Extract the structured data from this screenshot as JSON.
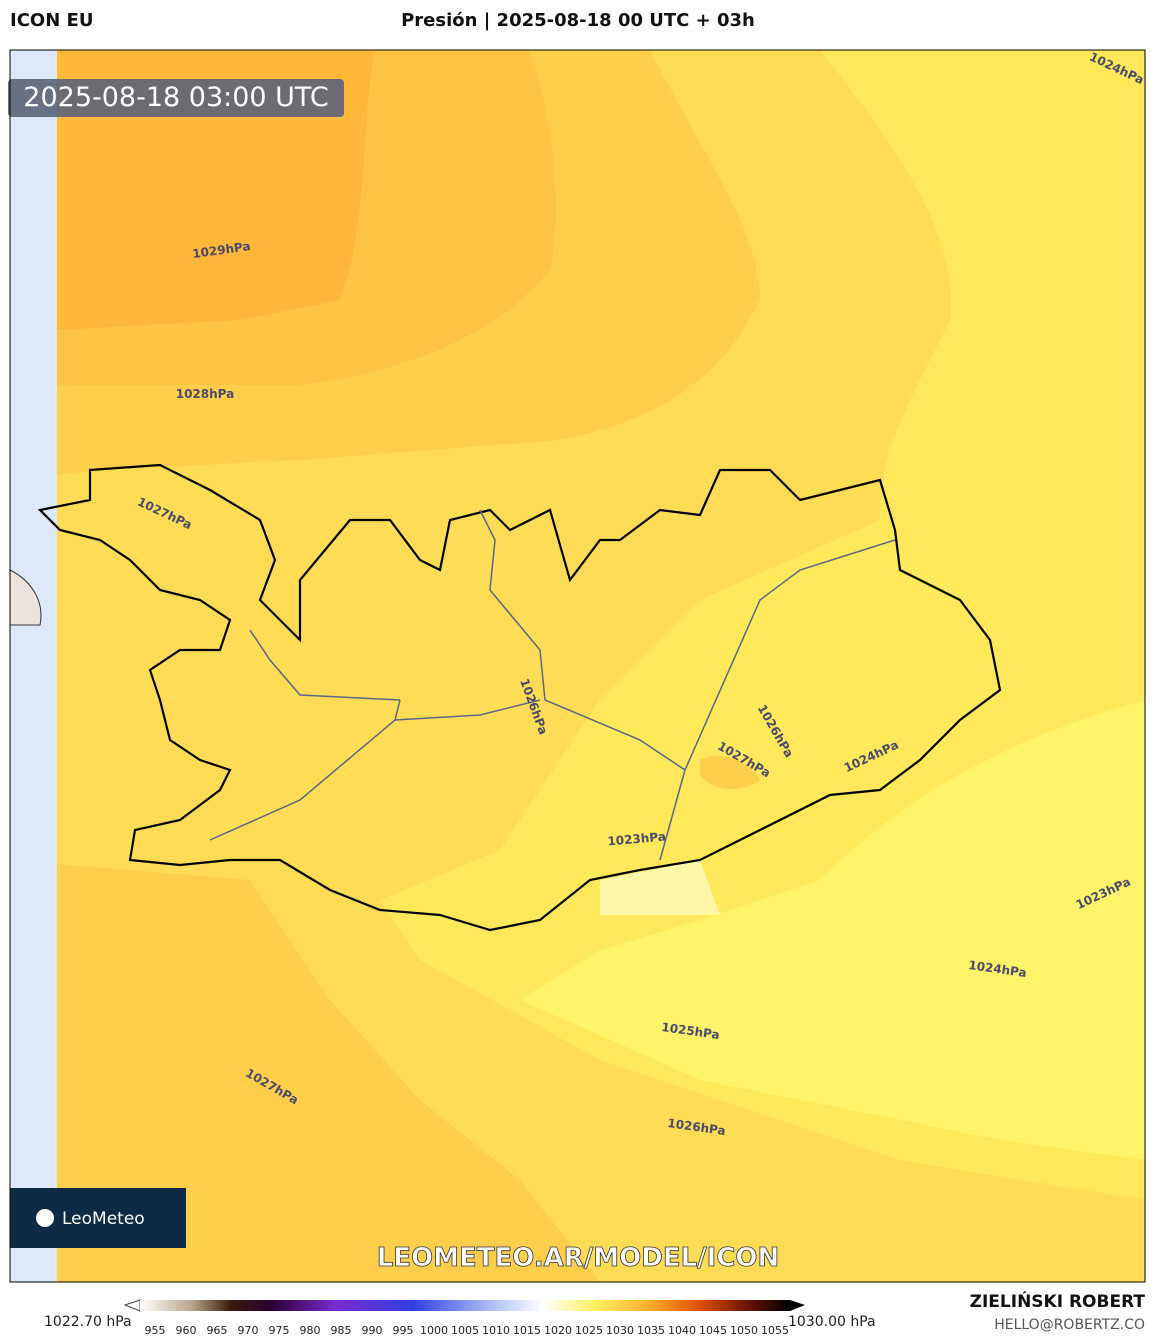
{
  "header": {
    "model": "ICON EU",
    "title": "Presión | 2025-08-18 00 UTC + 03h",
    "valid_time": "2025-08-18 03:00 UTC"
  },
  "map": {
    "contour_labels": [
      "1024hPa",
      "1029hPa",
      "1028hPa",
      "1027hPa",
      "1026hPa",
      "1026hPa",
      "1027hPa",
      "1024hPa",
      "1023hPa",
      "1023hPa",
      "1024hPa",
      "1025hPa",
      "1027hPa",
      "1026hPa"
    ],
    "logo": "LeoMeteo",
    "url": "LEOMETEO.AR/MODEL/ICON"
  },
  "colorbar": {
    "min_label": "1022.70 hPa",
    "max_label": "1030.00 hPa",
    "ticks": [
      "955",
      "960",
      "965",
      "970",
      "975",
      "980",
      "985",
      "990",
      "995",
      "1000",
      "1005",
      "1010",
      "1015",
      "1020",
      "1025",
      "1030",
      "1035",
      "1040",
      "1045",
      "1050",
      "1055"
    ]
  },
  "footer": {
    "author": "ZIELIŃSKI ROBERT",
    "email": "HELLO@ROBERTZ.CO"
  }
}
